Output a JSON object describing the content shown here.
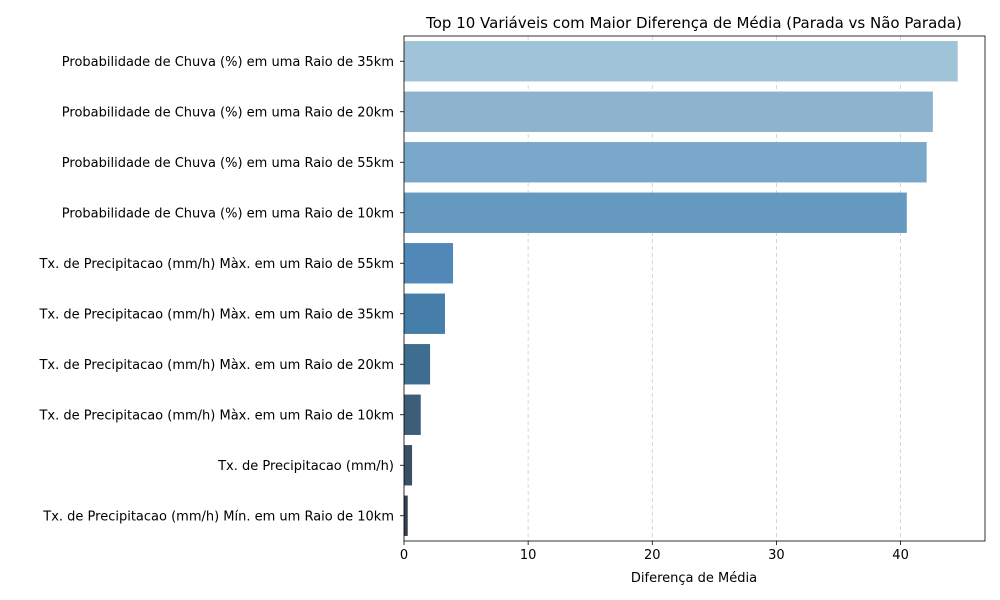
{
  "chart_data": {
    "type": "bar",
    "orientation": "horizontal",
    "title": "Top 10 Variáveis com Maior Diferença de Média (Parada vs Não Parada)",
    "xlabel": "Diferença de Média",
    "ylabel": "",
    "xlim": [
      0,
      46.8
    ],
    "xticks": [
      0,
      10,
      20,
      30,
      40
    ],
    "grid": "x-dashed",
    "categories": [
      "Probabilidade de Chuva (%) em uma Raio de 35km",
      "Probabilidade de Chuva (%) em uma Raio de 20km",
      "Probabilidade de Chuva (%) em uma Raio de 55km",
      "Probabilidade de Chuva (%) em uma Raio de 10km",
      "Tx. de Precipitacao (mm/h) Màx. em um Raio de 55km",
      "Tx. de Precipitacao (mm/h) Màx. em um Raio de 35km",
      "Tx. de Precipitacao (mm/h) Màx. em um Raio de 20km",
      "Tx. de Precipitacao (mm/h) Màx. em um Raio de 10km",
      "Tx. de Precipitacao (mm/h)",
      "Tx. de Precipitacao (mm/h) Mín. em um Raio de 10km"
    ],
    "values": [
      44.6,
      42.6,
      42.1,
      40.5,
      3.95,
      3.3,
      2.1,
      1.35,
      0.65,
      0.3
    ],
    "colors": [
      "#a1c3d8",
      "#8db3ce",
      "#79a8cb",
      "#6699c0",
      "#5088b8",
      "#457fa9",
      "#3f6d8f",
      "#3e5d78",
      "#3a4f65",
      "#35404e"
    ]
  }
}
